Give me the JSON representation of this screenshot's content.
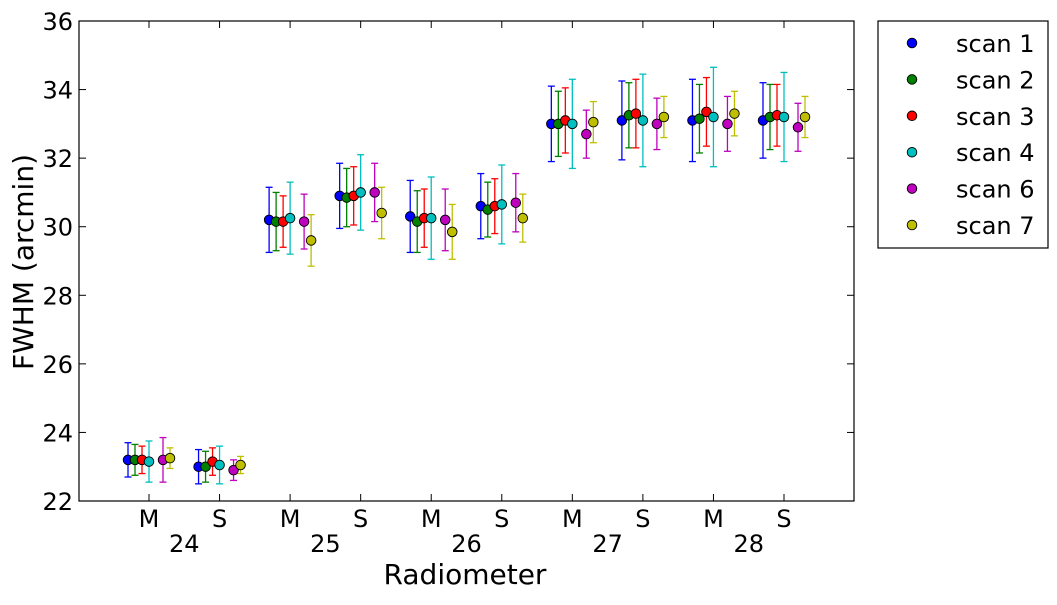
{
  "chart_data": {
    "type": "scatter",
    "title": "",
    "xlabel": "Radiometer",
    "ylabel": "FWHM (arcmin)",
    "ylim": [
      22,
      36
    ],
    "yticks": [
      22,
      24,
      26,
      28,
      30,
      32,
      34,
      36
    ],
    "categories": [
      "M",
      "S",
      "M",
      "S",
      "M",
      "S",
      "M",
      "S",
      "M",
      "S"
    ],
    "groups": [
      "24",
      "25",
      "26",
      "27",
      "28"
    ],
    "legend_position": "outside-top-right",
    "series": [
      {
        "name": "scan 1",
        "color": "#0000ff",
        "values": [
          23.2,
          23.0,
          30.2,
          30.9,
          30.3,
          30.6,
          33.0,
          33.1,
          33.1,
          33.1
        ],
        "err": [
          0.5,
          0.5,
          0.95,
          0.95,
          1.05,
          0.95,
          1.1,
          1.15,
          1.2,
          1.1
        ]
      },
      {
        "name": "scan 2",
        "color": "#008000",
        "values": [
          23.2,
          23.0,
          30.15,
          30.85,
          30.15,
          30.5,
          33.0,
          33.25,
          33.15,
          33.2
        ],
        "err": [
          0.45,
          0.45,
          0.85,
          0.85,
          0.9,
          0.8,
          0.95,
          0.95,
          1.0,
          0.95
        ]
      },
      {
        "name": "scan 3",
        "color": "#ff0000",
        "values": [
          23.2,
          23.15,
          30.15,
          30.9,
          30.25,
          30.6,
          33.1,
          33.3,
          33.35,
          33.25
        ],
        "err": [
          0.4,
          0.4,
          0.75,
          0.85,
          0.85,
          0.8,
          0.95,
          1.0,
          1.0,
          0.9
        ]
      },
      {
        "name": "scan 4",
        "color": "#00bfbf",
        "values": [
          23.15,
          23.05,
          30.25,
          31.0,
          30.25,
          30.65,
          33.0,
          33.1,
          33.2,
          33.2
        ],
        "err": [
          0.6,
          0.55,
          1.05,
          1.1,
          1.2,
          1.15,
          1.3,
          1.35,
          1.45,
          1.3
        ]
      },
      {
        "name": "scan 6",
        "color": "#bf00bf",
        "values": [
          23.2,
          22.9,
          30.15,
          31.0,
          30.2,
          30.7,
          32.7,
          33.0,
          33.0,
          32.9
        ],
        "err": [
          0.65,
          0.3,
          0.8,
          0.85,
          0.9,
          0.85,
          0.7,
          0.75,
          0.8,
          0.7
        ]
      },
      {
        "name": "scan 7",
        "color": "#bfbf00",
        "values": [
          23.25,
          23.05,
          29.6,
          30.4,
          29.85,
          30.25,
          33.05,
          33.2,
          33.3,
          33.2
        ],
        "err": [
          0.3,
          0.25,
          0.75,
          0.75,
          0.8,
          0.7,
          0.6,
          0.6,
          0.65,
          0.6
        ]
      }
    ]
  }
}
